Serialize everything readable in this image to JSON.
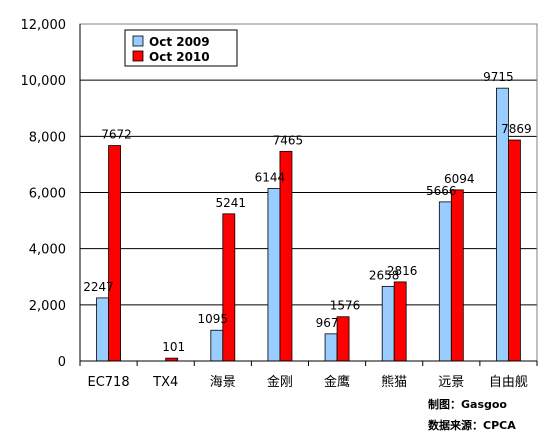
{
  "chart_data": {
    "type": "bar",
    "categories": [
      "EC718",
      "TX4",
      "海景",
      "金刚",
      "金鹰",
      "熊猫",
      "远景",
      "自由舰"
    ],
    "series": [
      {
        "name": "Oct 2009",
        "values": [
          2247,
          null,
          1095,
          6144,
          967,
          2658,
          5666,
          9715
        ],
        "color": "#99ccff",
        "labels": [
          "2247",
          "",
          "1095",
          "6144",
          "967",
          "2658",
          "5666",
          "9715"
        ]
      },
      {
        "name": "Oct 2010",
        "values": [
          7672,
          101,
          5241,
          7465,
          1576,
          2816,
          6094,
          7869
        ],
        "color": "#ff0000",
        "labels": [
          "7672",
          "101",
          "5241",
          "7465",
          "1576",
          "2816",
          "6094",
          "7869"
        ]
      }
    ],
    "yticks": [
      0,
      2000,
      4000,
      6000,
      8000,
      10000,
      12000
    ],
    "ytick_labels": [
      "0",
      "2,000",
      "4,000",
      "6,000",
      "8,000",
      "10,000",
      "12,000"
    ],
    "ylim": [
      0,
      12000
    ],
    "grid": true,
    "legend_position": "top-left"
  },
  "credits": {
    "maker": "制图：Gasgoo",
    "source": "数据来源：CPCA"
  }
}
